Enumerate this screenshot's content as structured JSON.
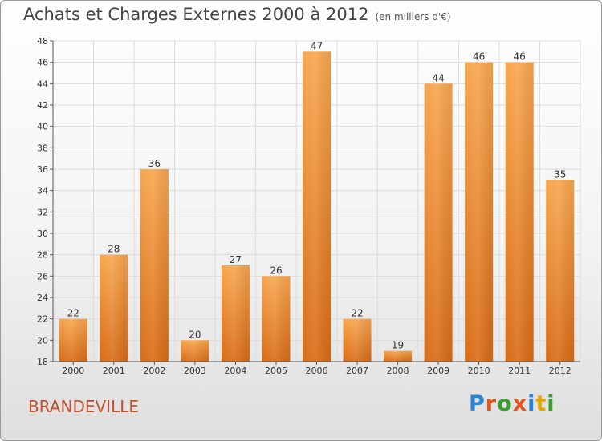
{
  "header": {
    "title": "Achats et Charges Externes 2000 à 2012",
    "subtitle": "(en milliers d'€)"
  },
  "commune": "BRANDEVILLE",
  "logo": {
    "text": "Proxiti",
    "letter_colors": [
      "#2a84d6",
      "#e2561d",
      "#3a9e2f",
      "#e2561d",
      "#2a84d6",
      "#e0a800",
      "#3a9e2f"
    ]
  },
  "colors": {
    "bar_light": "#f7a64e",
    "bar_dark": "#d86b16",
    "grid": "#dcdcdc",
    "axis": "#555555"
  },
  "chart_data": {
    "type": "bar",
    "title": "Achats et Charges Externes 2000 à 2012",
    "subtitle": "(en milliers d'€)",
    "categories": [
      "2000",
      "2001",
      "2002",
      "2003",
      "2004",
      "2005",
      "2006",
      "2007",
      "2008",
      "2009",
      "2010",
      "2011",
      "2012"
    ],
    "values": [
      22,
      28,
      36,
      20,
      27,
      26,
      47,
      22,
      19,
      44,
      46,
      46,
      35
    ],
    "ylim": [
      18,
      48
    ],
    "yticks": [
      18,
      20,
      22,
      24,
      26,
      28,
      30,
      32,
      34,
      36,
      38,
      40,
      42,
      44,
      46,
      48
    ],
    "grid": true,
    "data_labels": true
  }
}
